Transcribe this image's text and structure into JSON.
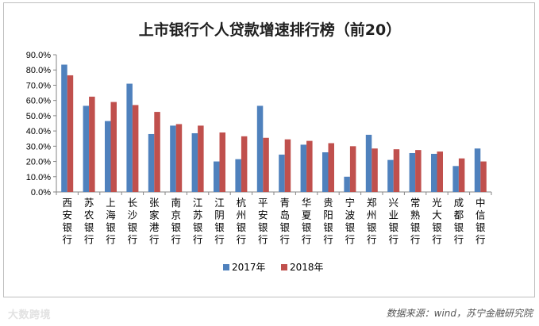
{
  "chart_data": {
    "type": "bar",
    "title": "上市银行个人贷款增速排行榜（前20）",
    "categories": [
      "西安银行",
      "苏农银行",
      "上海银行",
      "长沙银行",
      "张家港行",
      "南京银行",
      "江苏银行",
      "江阴银行",
      "杭州银行",
      "平安银行",
      "青岛银行",
      "华夏银行",
      "贵阳银行",
      "宁波银行",
      "郑州银行",
      "兴业银行",
      "常熟银行",
      "光大银行",
      "成都银行",
      "中信银行"
    ],
    "series": [
      {
        "name": "2017年",
        "color": "#4f81bd",
        "values": [
          83.5,
          56.5,
          46.5,
          71.0,
          38.0,
          43.5,
          38.5,
          20.0,
          21.5,
          56.5,
          24.5,
          31.0,
          26.0,
          10.0,
          37.5,
          21.0,
          25.5,
          25.0,
          17.0,
          28.5
        ]
      },
      {
        "name": "2018年",
        "color": "#c0504d",
        "values": [
          76.5,
          62.5,
          59.0,
          57.0,
          52.5,
          44.5,
          43.5,
          39.0,
          36.5,
          35.5,
          34.5,
          33.5,
          32.0,
          30.0,
          28.5,
          28.0,
          27.5,
          26.5,
          22.0,
          20.0
        ]
      }
    ],
    "yticks": [
      "0.0%",
      "10.0%",
      "20.0%",
      "30.0%",
      "40.0%",
      "50.0%",
      "60.0%",
      "70.0%",
      "80.0%",
      "90.0%"
    ],
    "ylim": [
      0,
      90
    ],
    "grid": false,
    "legend": "bottom"
  },
  "watermark": "大数跨境",
  "source": "数据来源：wind，苏宁金融研究院"
}
